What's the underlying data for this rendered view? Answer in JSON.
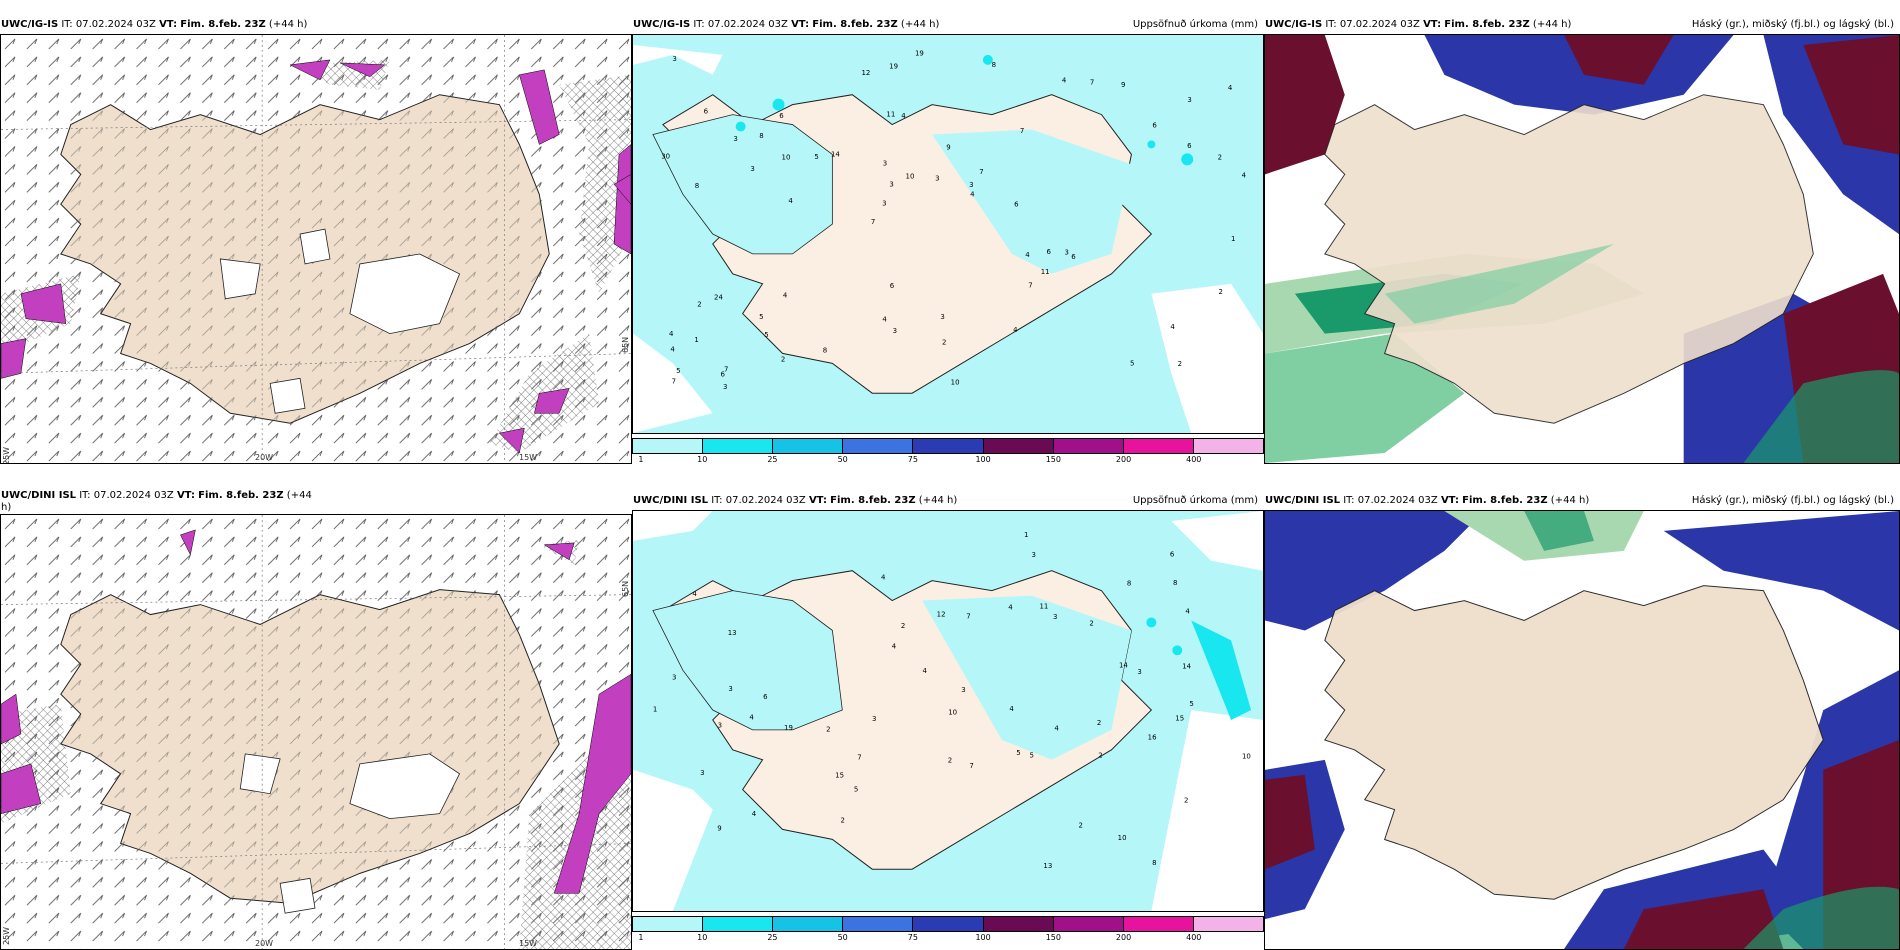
{
  "panels": [
    {
      "id": "top-left",
      "model": "UWC/IG-IS",
      "it_label": "IT:",
      "it_value": "07.02.2024 03Z",
      "vt_label": "VT:",
      "vt_value": "Fim. 8.feb. 23Z",
      "lead": "(+44 h)",
      "right_title": "",
      "axis": {
        "lon1": "20W",
        "lon2": "15W",
        "lat": "65N",
        "lat2": "25W"
      }
    },
    {
      "id": "top-mid",
      "model": "UWC/IG-IS",
      "it_label": "IT:",
      "it_value": "07.02.2024 03Z",
      "vt_label": "VT:",
      "vt_value": "Fim. 8.feb. 23Z",
      "lead": "(+44 h)",
      "right_title": "Uppsöfnuð úrkoma (mm)"
    },
    {
      "id": "top-right",
      "model": "UWC/IG-IS",
      "it_label": "IT:",
      "it_value": "07.02.2024 03Z",
      "vt_label": "VT:",
      "vt_value": "Fim. 8.feb. 23Z",
      "lead": "(+44 h)",
      "right_title": "Háský (gr.), miðský (fj.bl.) og lágský (bl.)"
    },
    {
      "id": "bottom-left",
      "model": "UWC/DINI ISL",
      "it_label": "IT:",
      "it_value": "07.02.2024 03Z",
      "vt_label": "VT:",
      "vt_value": "Fim. 8.feb. 23Z",
      "lead": "(+44",
      "lead2": "h)",
      "right_title": "",
      "axis": {
        "lon1": "20W",
        "lon2": "15W",
        "lat": "65N",
        "lat2": "25W"
      }
    },
    {
      "id": "bottom-mid",
      "model": "UWC/DINI ISL",
      "it_label": "IT:",
      "it_value": "07.02.2024 03Z",
      "vt_label": "VT:",
      "vt_value": "Fim. 8.feb. 23Z",
      "lead": "(+44 h)",
      "right_title": "Uppsöfnuð úrkoma (mm)"
    },
    {
      "id": "bottom-right",
      "model": "UWC/DINI ISL",
      "it_label": "IT:",
      "it_value": "07.02.2024 03Z",
      "vt_label": "VT:",
      "vt_value": "Fim. 8.feb. 23Z",
      "lead": "(+44 h)",
      "right_title": "Háský (gr.), miðský (fj.bl.) og lágský (bl.)"
    }
  ],
  "legend": {
    "ticks": [
      "1",
      "10",
      "25",
      "50",
      "75",
      "100",
      "150",
      "200",
      "400"
    ],
    "colors": [
      "#b5f7f9",
      "#19e7ef",
      "#16c3e6",
      "#3b73e0",
      "#2b3bb3",
      "#6a0a55",
      "#a1108a",
      "#e7129d",
      "#f3b2e8"
    ]
  },
  "precip_labels_top": [
    "2",
    "8",
    "3",
    "7",
    "7",
    "7",
    "11",
    "9",
    "24",
    "14",
    "4",
    "5",
    "4",
    "7",
    "6",
    "6",
    "19",
    "4",
    "4",
    "6",
    "3",
    "4",
    "3",
    "6",
    "4",
    "4",
    "5",
    "4",
    "3",
    "10",
    "5",
    "3",
    "7",
    "2",
    "2",
    "3",
    "5",
    "3",
    "4",
    "2",
    "6",
    "4",
    "11",
    "4",
    "5",
    "3",
    "7",
    "3",
    "9",
    "19",
    "4",
    "30",
    "8",
    "7",
    "6",
    "8",
    "12",
    "10",
    "2",
    "6",
    "8",
    "6",
    "10",
    "4",
    "3",
    "3",
    "1",
    "3",
    "2",
    "3",
    "1",
    "6"
  ],
  "precip_labels_bottom": [
    "8",
    "4",
    "5",
    "4",
    "2",
    "13",
    "4",
    "2",
    "2",
    "12",
    "3",
    "10",
    "5",
    "4",
    "4",
    "3",
    "2",
    "3",
    "3",
    "9",
    "6",
    "7",
    "14",
    "10",
    "5",
    "3",
    "19",
    "10",
    "4",
    "8",
    "5",
    "3",
    "15",
    "11",
    "2",
    "16",
    "15",
    "2",
    "8",
    "13",
    "7",
    "7",
    "2",
    "1",
    "3",
    "6",
    "4",
    "3",
    "4",
    "2",
    "4",
    "14",
    "2",
    "3",
    "4",
    "1"
  ],
  "colors": {
    "land": "#efdfcc",
    "sea": "#ffffff",
    "precip_light": "#b5f7f9",
    "cloud_high": "#1a9a6a",
    "cloud_mid": "#2b37a8",
    "cloud_low": "#6a0f2e"
  }
}
